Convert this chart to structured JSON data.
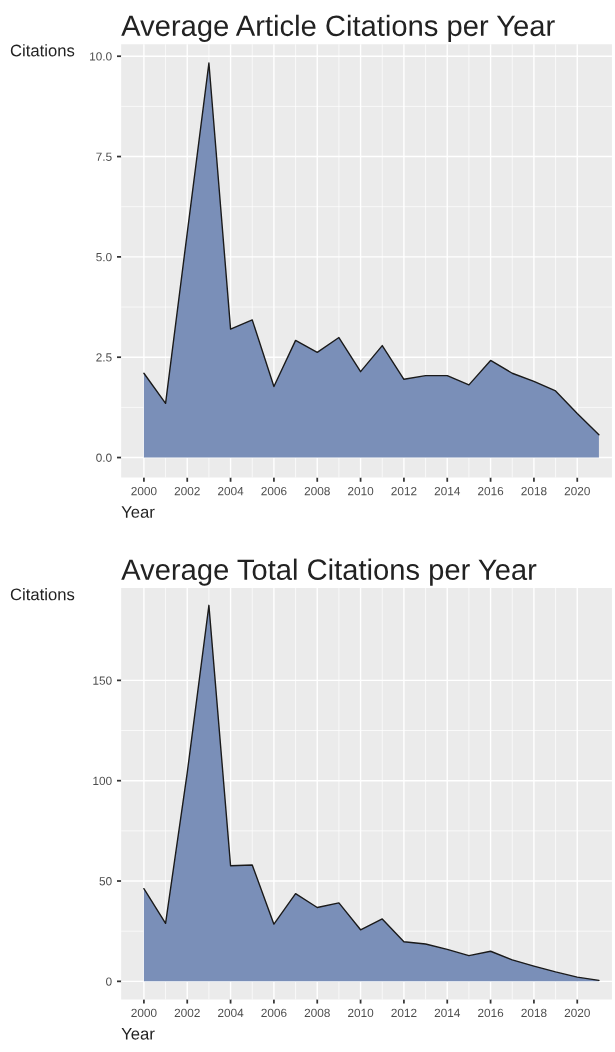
{
  "chart_data": [
    {
      "type": "area",
      "title": "Average Article Citations per Year",
      "xlabel": "Year",
      "ylabel": "Citations",
      "x": [
        2000,
        2001,
        2002,
        2003,
        2004,
        2005,
        2006,
        2007,
        2008,
        2009,
        2010,
        2011,
        2012,
        2013,
        2014,
        2015,
        2016,
        2017,
        2018,
        2019,
        2020,
        2021
      ],
      "series": [
        {
          "color": "#7a8fb8",
          "values": [
            2.1,
            1.35,
            5.6,
            9.83,
            3.2,
            3.43,
            1.77,
            2.92,
            2.62,
            2.99,
            2.14,
            2.79,
            1.95,
            2.04,
            2.04,
            1.81,
            2.42,
            2.1,
            1.9,
            1.66,
            1.1,
            0.57
          ]
        }
      ],
      "xlim": [
        1998.95,
        2021.6
      ],
      "xticks": [
        2000,
        2002,
        2004,
        2006,
        2008,
        2010,
        2012,
        2014,
        2016,
        2018,
        2020
      ],
      "ylim": [
        -0.5,
        10.3
      ],
      "yticks": [
        {
          "value": 0,
          "label": "0.0"
        },
        {
          "value": 2.5,
          "label": "2.5"
        },
        {
          "value": 5,
          "label": "5.0"
        },
        {
          "value": 7.5,
          "label": "7.5"
        },
        {
          "value": 10,
          "label": "10.0"
        }
      ],
      "grid": true
    },
    {
      "type": "area",
      "title": "Average Total Citations per Year",
      "xlabel": "Year",
      "ylabel": "Citations",
      "x": [
        2000,
        2001,
        2002,
        2003,
        2004,
        2005,
        2006,
        2007,
        2008,
        2009,
        2010,
        2011,
        2012,
        2013,
        2014,
        2015,
        2016,
        2017,
        2018,
        2019,
        2020,
        2021
      ],
      "series": [
        {
          "color": "#7a8fb8",
          "values": [
            46.2,
            28.9,
            104,
            187.4,
            57.6,
            58,
            28.5,
            43.7,
            36.8,
            39.1,
            25.7,
            31.1,
            19.7,
            18.6,
            15.9,
            12.8,
            15,
            10.7,
            7.6,
            4.7,
            2.1,
            0.5
          ]
        }
      ],
      "xlim": [
        1998.95,
        2021.6
      ],
      "xticks": [
        2000,
        2002,
        2004,
        2006,
        2008,
        2010,
        2012,
        2014,
        2016,
        2018,
        2020
      ],
      "ylim": [
        -9,
        196
      ],
      "yticks": [
        0,
        50,
        100,
        150
      ],
      "grid": true
    }
  ]
}
